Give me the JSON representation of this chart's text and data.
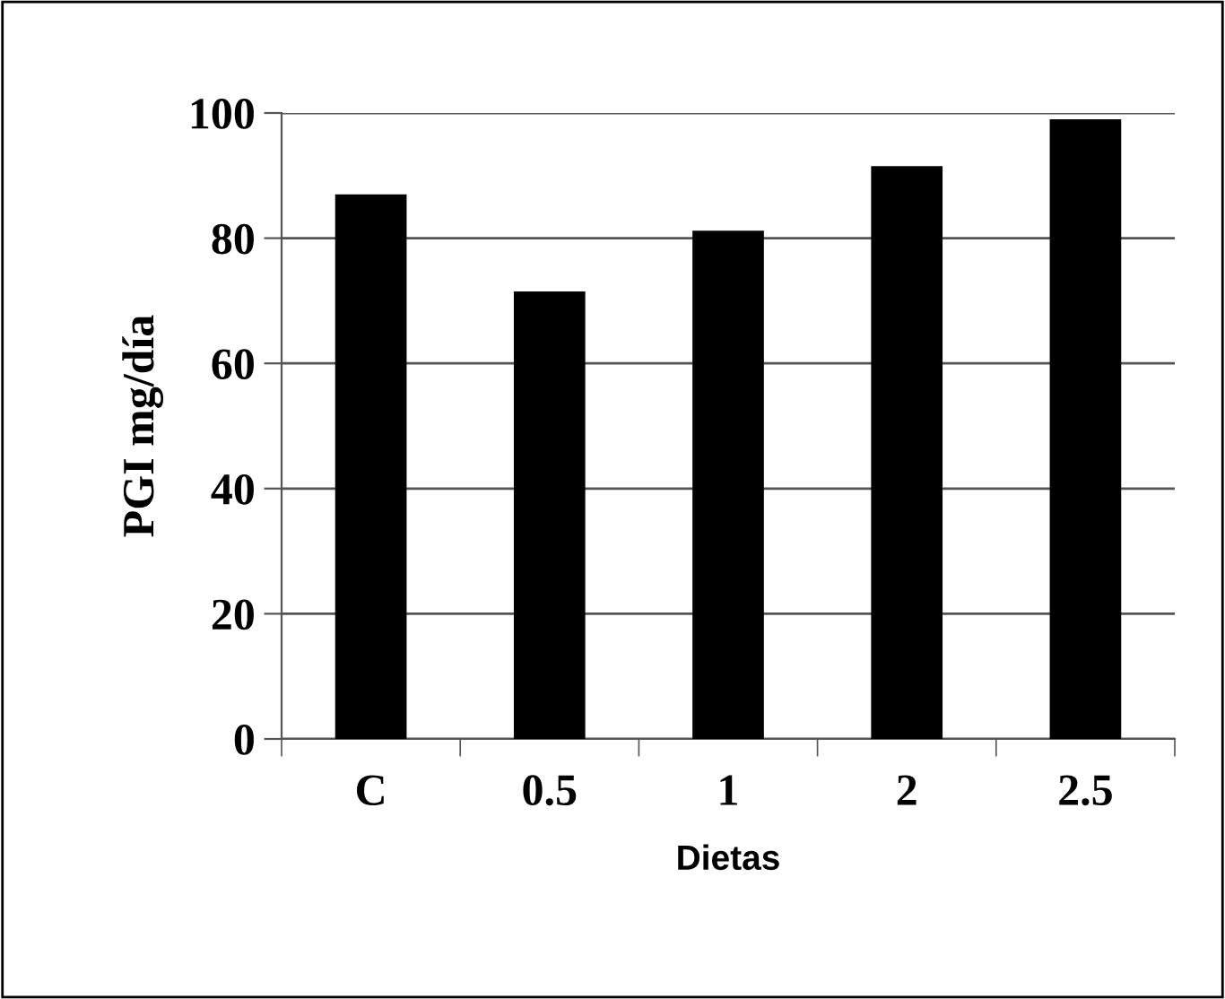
{
  "chart_data": {
    "type": "bar",
    "xlabel": "Dietas",
    "ylabel": "PGI mg/día",
    "categories": [
      "C",
      "0.5",
      "1",
      "2",
      "2.5"
    ],
    "values": [
      87,
      71.5,
      81.2,
      91.5,
      99
    ],
    "color": "#000000",
    "ylim": [
      0,
      100
    ],
    "yticks": [
      0,
      20,
      40,
      60,
      80,
      100
    ],
    "grid": "y",
    "legend": false
  }
}
